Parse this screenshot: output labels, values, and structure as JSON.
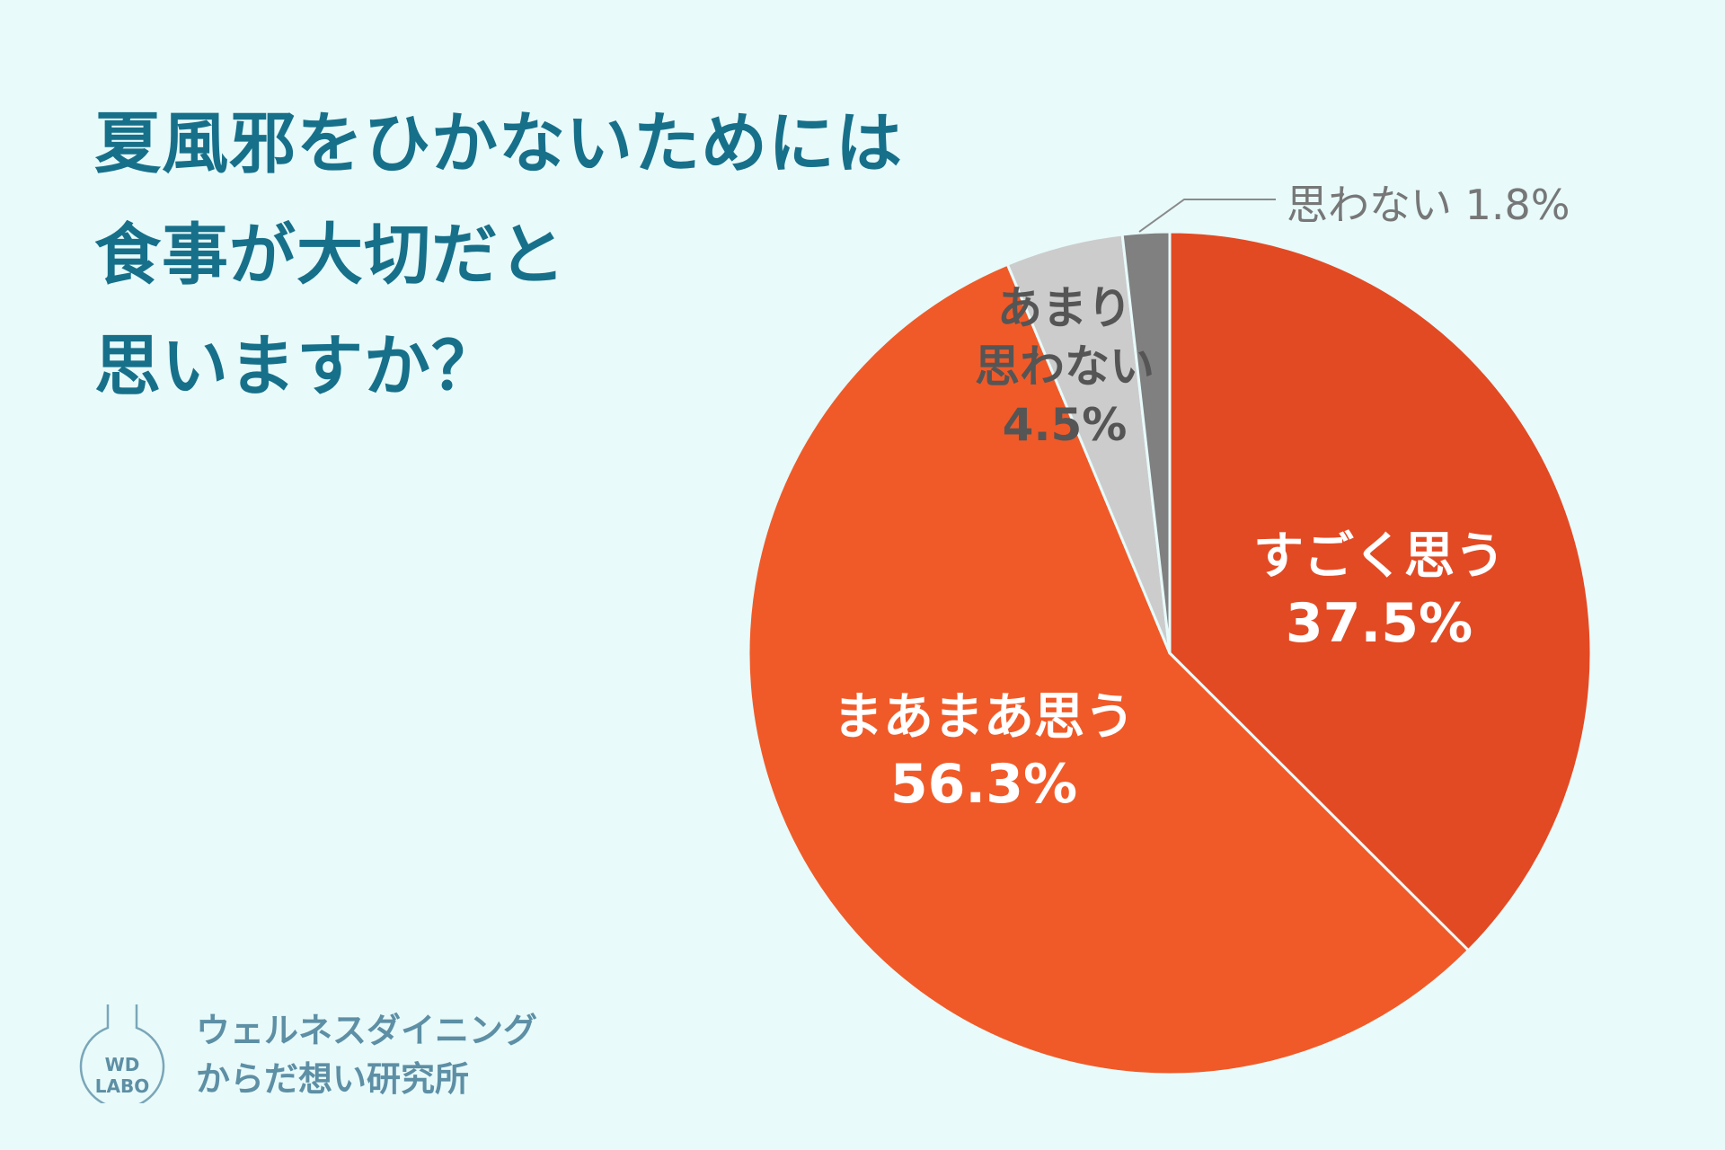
{
  "title": {
    "line1": "夏風邪をひかないためには",
    "line2": "食事が大切だと",
    "line3": "思いますか？"
  },
  "chart_data": {
    "type": "pie",
    "title": "夏風邪をひかないためには食事が大切だと思いますか？",
    "start": "12 o'clock, clockwise",
    "slices": [
      {
        "name": "すごく思う",
        "value": 37.5,
        "label": "37.5%",
        "color": "#e24a24"
      },
      {
        "name": "まあまあ思う",
        "value": 56.3,
        "label": "56.3%",
        "color": "#f05a28"
      },
      {
        "name": "あまり思わない",
        "value": 4.5,
        "label": "4.5%",
        "color": "#cccccc"
      },
      {
        "name": "思わない",
        "value": 1.8,
        "label": "1.8%",
        "color": "#808080"
      }
    ]
  },
  "labels": {
    "s1_name": "すごく思う",
    "s1_value": "37.5%",
    "s2_name": "まあまあ思う",
    "s2_value": "56.3%",
    "s3_name_line1": "あまり",
    "s3_name_line2": "思わない",
    "s3_value": "4.5%",
    "s4_callout": "思わない 1.8%"
  },
  "logo": {
    "badge_line1": "WD",
    "badge_line2": "LABO",
    "org_line1": "ウェルネスダイニング",
    "org_line2": "からだ想い研究所"
  },
  "colors": {
    "background": "#e8fafa",
    "title": "#17708a",
    "logo": "#5d8fa5"
  }
}
